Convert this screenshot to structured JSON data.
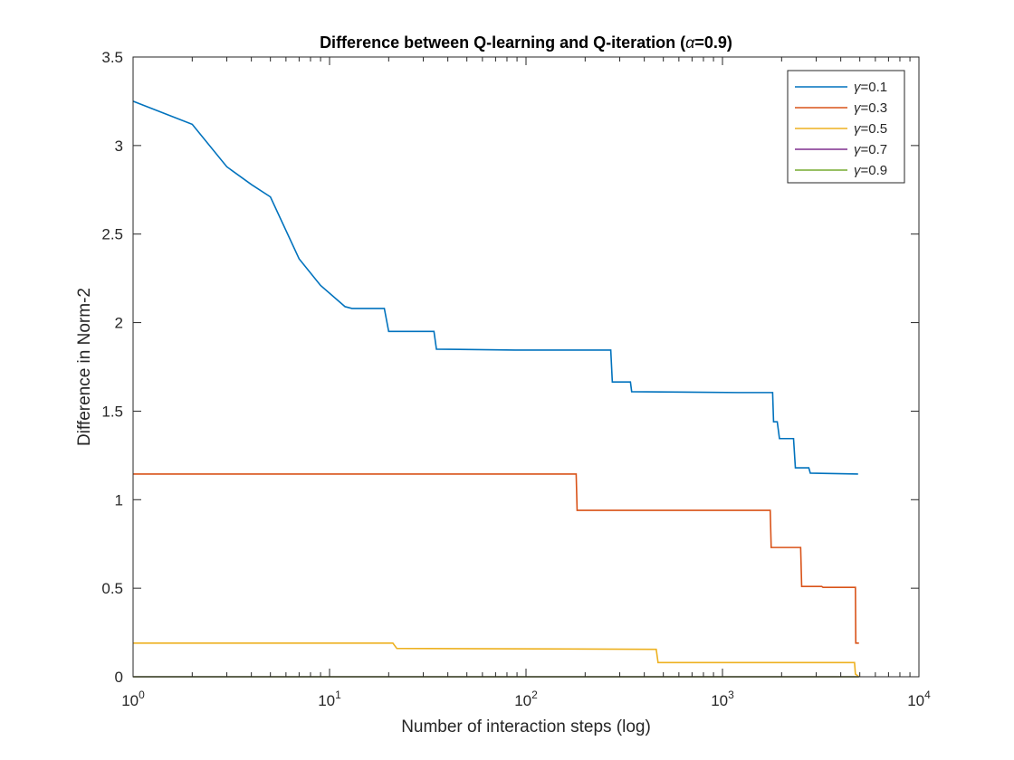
{
  "chart_data": {
    "type": "line",
    "title_parts": [
      "Difference between Q-learning and Q-iteration (",
      "α",
      "=0.9)"
    ],
    "xlabel": "Number of interaction steps (log)",
    "ylabel": "Difference in Norm-2",
    "xscale": "log",
    "xlim": [
      1,
      10000
    ],
    "ylim": [
      0,
      3.5
    ],
    "x_ticks": [
      {
        "value": 1,
        "base": "10",
        "exp": "0"
      },
      {
        "value": 10,
        "base": "10",
        "exp": "1"
      },
      {
        "value": 100,
        "base": "10",
        "exp": "2"
      },
      {
        "value": 1000,
        "base": "10",
        "exp": "3"
      },
      {
        "value": 10000,
        "base": "10",
        "exp": "4"
      }
    ],
    "y_ticks": [
      {
        "value": 0,
        "label": "0"
      },
      {
        "value": 0.5,
        "label": "0.5"
      },
      {
        "value": 1,
        "label": "1"
      },
      {
        "value": 1.5,
        "label": "1.5"
      },
      {
        "value": 2,
        "label": "2"
      },
      {
        "value": 2.5,
        "label": "2.5"
      },
      {
        "value": 3,
        "label": "3"
      },
      {
        "value": 3.5,
        "label": "3.5"
      }
    ],
    "grid": false,
    "legend_position": "top-right",
    "series": [
      {
        "symbol": "γ",
        "name_suffix": "=0.1",
        "color": "#0072BD",
        "points": [
          [
            1,
            3.25
          ],
          [
            2,
            3.12
          ],
          [
            3,
            2.88
          ],
          [
            4,
            2.78
          ],
          [
            5,
            2.71
          ],
          [
            7,
            2.36
          ],
          [
            9,
            2.21
          ],
          [
            12,
            2.09
          ],
          [
            13,
            2.08
          ],
          [
            19,
            2.08
          ],
          [
            20,
            1.95
          ],
          [
            34,
            1.95
          ],
          [
            35,
            1.85
          ],
          [
            88,
            1.845
          ],
          [
            270,
            1.845
          ],
          [
            275,
            1.665
          ],
          [
            340,
            1.665
          ],
          [
            345,
            1.61
          ],
          [
            1200,
            1.605
          ],
          [
            1800,
            1.605
          ],
          [
            1820,
            1.44
          ],
          [
            1900,
            1.44
          ],
          [
            1950,
            1.345
          ],
          [
            2300,
            1.345
          ],
          [
            2350,
            1.18
          ],
          [
            2750,
            1.18
          ],
          [
            2800,
            1.15
          ],
          [
            4900,
            1.145
          ]
        ]
      },
      {
        "symbol": "γ",
        "name_suffix": "=0.3",
        "color": "#D95319",
        "points": [
          [
            1,
            1.145
          ],
          [
            180,
            1.145
          ],
          [
            182,
            0.94
          ],
          [
            1750,
            0.94
          ],
          [
            1770,
            0.73
          ],
          [
            2500,
            0.73
          ],
          [
            2530,
            0.51
          ],
          [
            3200,
            0.51
          ],
          [
            3250,
            0.505
          ],
          [
            4750,
            0.505
          ],
          [
            4770,
            0.19
          ],
          [
            4950,
            0.19
          ]
        ]
      },
      {
        "symbol": "γ",
        "name_suffix": "=0.5",
        "color": "#EDB120",
        "points": [
          [
            1,
            0.19
          ],
          [
            21,
            0.19
          ],
          [
            22,
            0.16
          ],
          [
            460,
            0.155
          ],
          [
            470,
            0.08
          ],
          [
            4700,
            0.08
          ],
          [
            4750,
            0.015
          ],
          [
            4950,
            0.0
          ]
        ]
      },
      {
        "symbol": "γ",
        "name_suffix": "=0.7",
        "color": "#7E2F8E",
        "points": [
          [
            1,
            0.0
          ],
          [
            4950,
            0.0
          ]
        ]
      },
      {
        "symbol": "γ",
        "name_suffix": "=0.9",
        "color": "#77AC30",
        "points": [
          [
            1,
            0.0
          ],
          [
            4950,
            0.0
          ]
        ]
      }
    ]
  }
}
